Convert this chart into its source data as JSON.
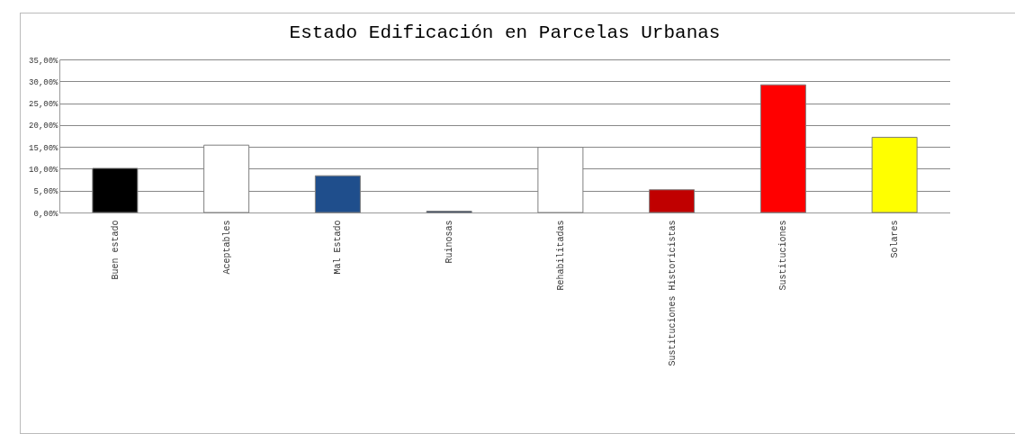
{
  "chart_data": {
    "type": "bar",
    "title": "Estado Edificación en Parcelas Urbanas",
    "categories": [
      "Buen estado",
      "Aceptables",
      "Mal Estado",
      "Ruinosas",
      "Rehabilitadas",
      "Sustituciones Historicistas",
      "Sustituciones",
      "Solares"
    ],
    "values": [
      10.1,
      15.4,
      8.4,
      0.3,
      14.9,
      5.2,
      29.2,
      17.2
    ],
    "colors": [
      "#000000",
      "#ffffff",
      "#1f4e8c",
      "#1f3864",
      "#ffffff",
      "#c00000",
      "#ff0000",
      "#ffff00"
    ],
    "ylim": [
      0,
      35
    ],
    "yticks": [
      {
        "value": 0,
        "label": "0,00%"
      },
      {
        "value": 5,
        "label": "5,00%"
      },
      {
        "value": 10,
        "label": "10,00%"
      },
      {
        "value": 15,
        "label": "15,00%"
      },
      {
        "value": 20,
        "label": "20,00%"
      },
      {
        "value": 25,
        "label": "25,00%"
      },
      {
        "value": 30,
        "label": "30,00%"
      },
      {
        "value": 35,
        "label": "35,00%"
      }
    ],
    "grid": "y"
  }
}
